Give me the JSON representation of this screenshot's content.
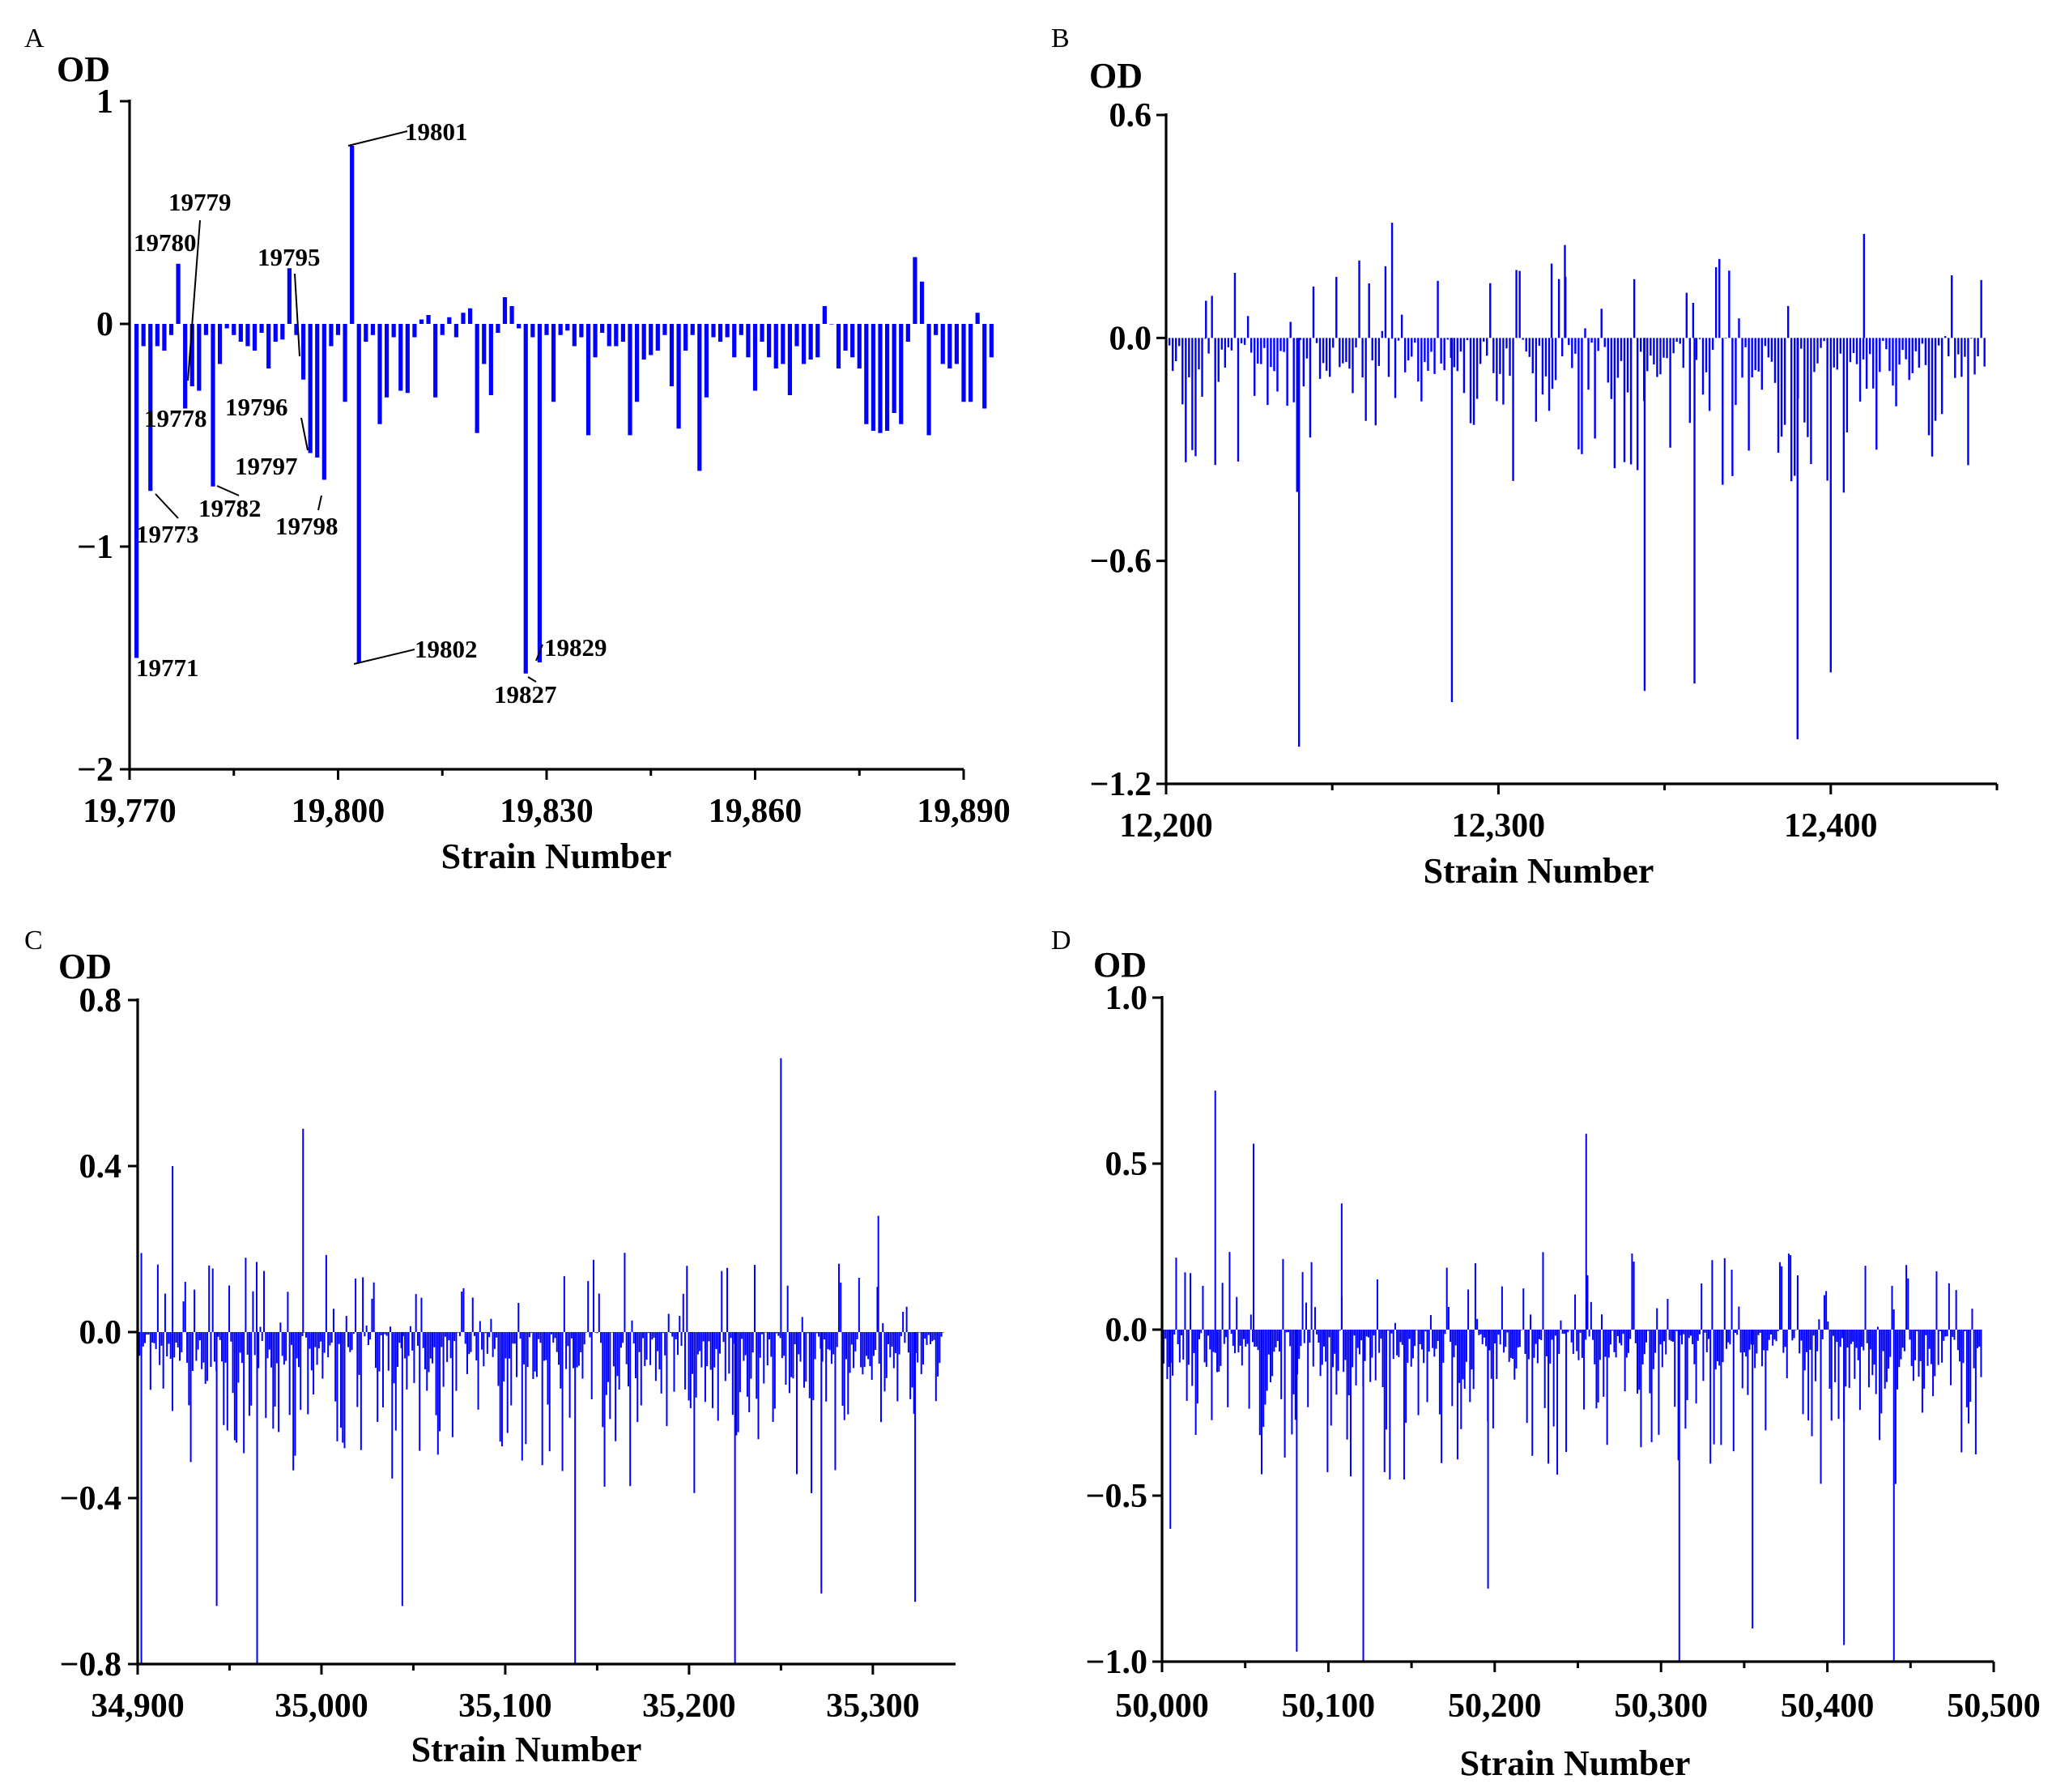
{
  "figure": {
    "bar_color": "#0000ff",
    "axis_color": "#000000"
  },
  "chart_data": [
    {
      "panel": "A",
      "type": "bar",
      "ylabel": "OD",
      "xlabel": "Strain Number",
      "xlim": [
        19770,
        19890
      ],
      "ylim": [
        -2,
        1
      ],
      "xticks": [
        19770,
        19800,
        19830,
        19860,
        19890
      ],
      "xtick_labels": [
        "19,770",
        "19,800",
        "19,830",
        "19,860",
        "19,890"
      ],
      "yticks": [
        -2,
        -1,
        0,
        1
      ],
      "ytick_labels": [
        "−2",
        "−1",
        "0",
        "1"
      ],
      "x_start": 19771,
      "values": [
        -1.5,
        -0.1,
        -0.75,
        -0.1,
        -0.12,
        -0.05,
        0.27,
        -0.38,
        -0.28,
        -0.3,
        -0.05,
        -0.73,
        -0.18,
        -0.02,
        -0.05,
        -0.08,
        -0.1,
        -0.12,
        -0.04,
        -0.2,
        -0.08,
        -0.07,
        0.25,
        -0.05,
        -0.25,
        -0.58,
        -0.6,
        -0.7,
        -0.1,
        -0.05,
        -0.35,
        0.8,
        -1.52,
        -0.08,
        -0.05,
        -0.45,
        -0.33,
        -0.06,
        -0.3,
        -0.31,
        -0.06,
        0.02,
        0.04,
        -0.33,
        -0.05,
        0.03,
        -0.06,
        0.05,
        0.07,
        -0.49,
        -0.18,
        -0.32,
        -0.04,
        0.12,
        0.08,
        -0.02,
        -1.57,
        -0.06,
        -1.52,
        -0.05,
        -0.35,
        -0.05,
        -0.03,
        -0.1,
        -0.06,
        -0.5,
        -0.15,
        -0.04,
        -0.1,
        -0.1,
        -0.08,
        -0.5,
        -0.35,
        -0.16,
        -0.14,
        -0.12,
        -0.05,
        -0.28,
        -0.47,
        -0.12,
        -0.05,
        -0.66,
        -0.33,
        -0.06,
        -0.08,
        -0.06,
        -0.15,
        -0.05,
        -0.15,
        -0.3,
        -0.08,
        -0.15,
        -0.2,
        -0.18,
        -0.32,
        -0.1,
        -0.18,
        -0.16,
        -0.15,
        0.08,
        0.0,
        -0.2,
        -0.12,
        -0.15,
        -0.2,
        -0.45,
        -0.48,
        -0.49,
        -0.48,
        -0.4,
        -0.45,
        -0.08,
        0.3,
        0.19,
        -0.5,
        -0.05,
        -0.18,
        -0.2,
        -0.18,
        -0.35,
        -0.35,
        0.05,
        -0.38,
        -0.15
      ],
      "annotations": [
        {
          "label": "19771",
          "strain": 19771
        },
        {
          "label": "19773",
          "strain": 19773
        },
        {
          "label": "19778",
          "strain": 19778
        },
        {
          "label": "19779",
          "strain": 19779
        },
        {
          "label": "19780",
          "strain": 19780
        },
        {
          "label": "19782",
          "strain": 19782
        },
        {
          "label": "19795",
          "strain": 19795
        },
        {
          "label": "19796",
          "strain": 19796
        },
        {
          "label": "19797",
          "strain": 19797
        },
        {
          "label": "19798",
          "strain": 19798
        },
        {
          "label": "19801",
          "strain": 19801
        },
        {
          "label": "19802",
          "strain": 19802
        },
        {
          "label": "19827",
          "strain": 19827
        },
        {
          "label": "19829",
          "strain": 19829
        }
      ]
    },
    {
      "panel": "B",
      "type": "bar",
      "ylabel": "OD",
      "xlabel": "Strain Number",
      "xlim": [
        12200,
        12450
      ],
      "ylim": [
        -1.2,
        0.6
      ],
      "xticks": [
        12200,
        12300,
        12400
      ],
      "xtick_labels": [
        "12,200",
        "12,300",
        "12,400"
      ],
      "yticks": [
        -1.2,
        -0.6,
        0.0,
        0.6
      ],
      "ytick_labels": [
        "−1.2",
        "−0.6",
        "0.0",
        "0.6"
      ],
      "n_bars": 250,
      "seed": 12,
      "spikes": [
        {
          "strain": 12240,
          "value": -1.1
        },
        {
          "strain": 12268,
          "value": 0.31
        },
        {
          "strain": 12286,
          "value": -0.98
        },
        {
          "strain": 12320,
          "value": 0.25
        },
        {
          "strain": 12344,
          "value": -0.95
        },
        {
          "strain": 12359,
          "value": -0.93
        },
        {
          "strain": 12390,
          "value": -1.08
        },
        {
          "strain": 12400,
          "value": -0.9
        },
        {
          "strain": 12410,
          "value": 0.28
        },
        {
          "strain": 12212,
          "value": 0.1
        },
        {
          "strain": 12316,
          "value": 0.2
        }
      ]
    },
    {
      "panel": "C",
      "type": "bar",
      "ylabel": "OD",
      "xlabel": "Strain Number",
      "xlim": [
        34900,
        35345
      ],
      "ylim": [
        -0.8,
        0.8
      ],
      "xticks": [
        34900,
        35000,
        35100,
        35200,
        35300
      ],
      "xtick_labels": [
        "34,900",
        "35,000",
        "35,100",
        "35,200",
        "35,300"
      ],
      "yticks": [
        -0.8,
        -0.4,
        0.0,
        0.4,
        0.8
      ],
      "ytick_labels": [
        "−0.8",
        "−0.4",
        "0.0",
        "0.4",
        "0.8"
      ],
      "n_bars": 440,
      "seed": 34,
      "spikes": [
        {
          "strain": 34902,
          "value": -0.8
        },
        {
          "strain": 34919,
          "value": 0.4
        },
        {
          "strain": 34990,
          "value": 0.49
        },
        {
          "strain": 34965,
          "value": -0.8
        },
        {
          "strain": 35138,
          "value": -0.8
        },
        {
          "strain": 35225,
          "value": -0.8
        },
        {
          "strain": 35250,
          "value": 0.66
        },
        {
          "strain": 35323,
          "value": -0.65
        },
        {
          "strain": 35303,
          "value": 0.28
        },
        {
          "strain": 35272,
          "value": -0.63
        },
        {
          "strain": 35044,
          "value": -0.66
        },
        {
          "strain": 34943,
          "value": -0.66
        }
      ]
    },
    {
      "panel": "D",
      "type": "bar",
      "ylabel": "OD",
      "xlabel": "Strain Number",
      "xlim": [
        50000,
        50500
      ],
      "ylim": [
        -1.0,
        1.0
      ],
      "xticks": [
        50000,
        50100,
        50200,
        50300,
        50400,
        50500
      ],
      "xtick_labels": [
        "50,000",
        "50,100",
        "50,200",
        "50,300",
        "50,400",
        "50,500"
      ],
      "yticks": [
        -1.0,
        -0.5,
        0.0,
        0.5,
        1.0
      ],
      "ytick_labels": [
        "−1.0",
        "−0.5",
        "0.0",
        "0.5",
        "1.0"
      ],
      "n_bars": 460,
      "seed": 50,
      "spikes": [
        {
          "strain": 50032,
          "value": 0.72
        },
        {
          "strain": 50055,
          "value": 0.56
        },
        {
          "strain": 50081,
          "value": -0.97
        },
        {
          "strain": 50121,
          "value": -1.0
        },
        {
          "strain": 50108,
          "value": 0.38
        },
        {
          "strain": 50255,
          "value": 0.59
        },
        {
          "strain": 50311,
          "value": -1.0
        },
        {
          "strain": 50410,
          "value": -0.95
        },
        {
          "strain": 50440,
          "value": -1.0
        },
        {
          "strain": 50355,
          "value": -0.9
        },
        {
          "strain": 50005,
          "value": -0.6
        },
        {
          "strain": 50196,
          "value": -0.78
        }
      ]
    }
  ]
}
